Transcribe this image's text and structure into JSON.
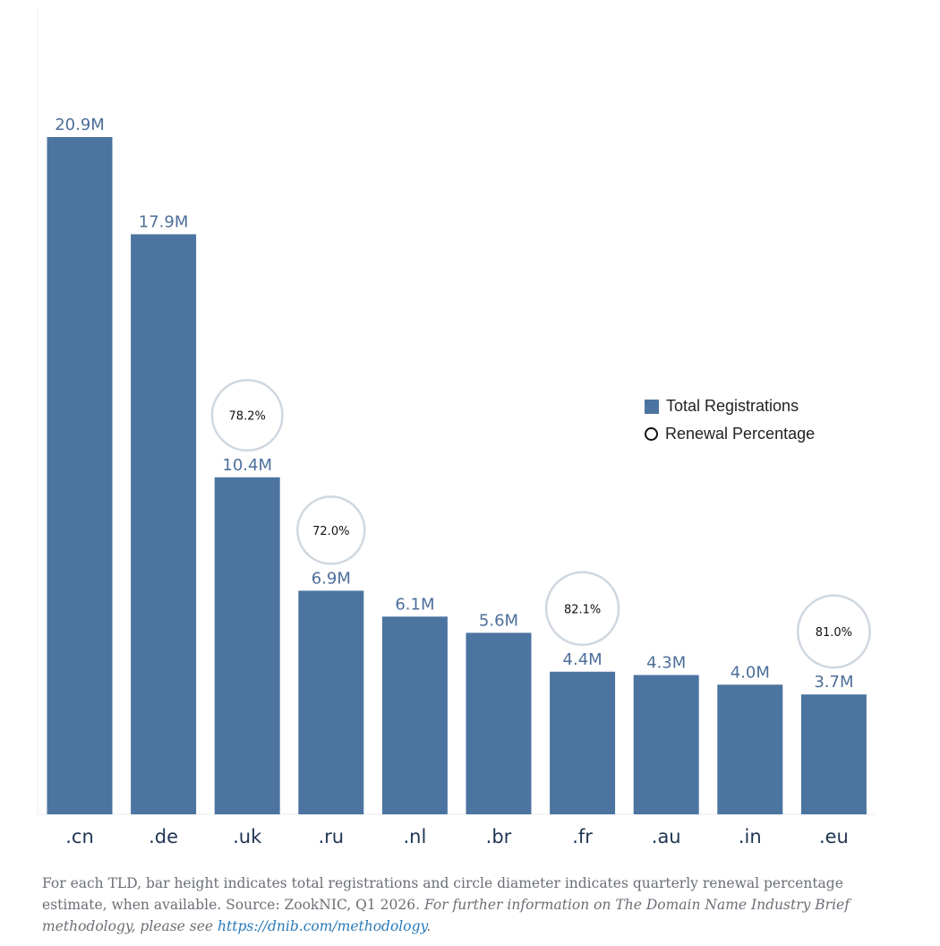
{
  "chart_data": {
    "type": "bar",
    "categories": [
      ".cn",
      ".de",
      ".uk",
      ".ru",
      ".nl",
      ".br",
      ".fr",
      ".au",
      ".in",
      ".eu"
    ],
    "series": [
      {
        "name": "Total Registrations",
        "values": [
          20.9,
          17.9,
          10.4,
          6.9,
          6.1,
          5.6,
          4.4,
          4.3,
          4.0,
          3.7
        ]
      },
      {
        "name": "Renewal Percentage",
        "values": [
          null,
          null,
          78.2,
          72.0,
          null,
          null,
          82.1,
          null,
          null,
          81.0
        ]
      }
    ],
    "bar_labels": [
      "20.9M",
      "17.9M",
      "10.4M",
      "6.9M",
      "6.1M",
      "5.6M",
      "4.4M",
      "4.3M",
      "4.0M",
      "3.7M"
    ],
    "circle_labels": [
      null,
      null,
      "78.2%",
      "72.0%",
      null,
      null,
      "82.1%",
      null,
      null,
      "81.0%"
    ],
    "unit": "M",
    "ylim": [
      0,
      20.9
    ],
    "grid": false,
    "legend_position": "right",
    "colors": {
      "bar": "#4c74a0",
      "bar_label": "#4d6f9a",
      "circle_stroke": "#cfd7e0",
      "tick": "#1f3552"
    }
  },
  "legend": {
    "items": [
      {
        "label": "Total Registrations",
        "shape": "square"
      },
      {
        "label": "Renewal Percentage",
        "shape": "circle"
      }
    ]
  },
  "footnote": {
    "text_plain": "For each TLD, bar height indicates total registrations and circle diameter indicates quarterly renewal percentage estimate, when available. Source: ZookNIC, Q1 2026. ",
    "text_italic": "For further information on The Domain Name Industry Brief methodology, please see ",
    "link": "https://dnib.com/methodology",
    "end": "."
  }
}
